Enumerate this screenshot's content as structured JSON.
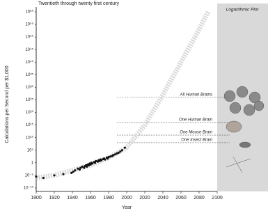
{
  "chart_data": {
    "type": "scatter",
    "subtitle": "Twentieth through twenty first century",
    "panel_label": "Logarithmic Plot",
    "x_label": "Year",
    "y_label": "Calculations per Second per $1,000",
    "log_y": true,
    "xlim": [
      1900,
      2100
    ],
    "xticks": [
      1900,
      1920,
      1940,
      1960,
      1980,
      2000,
      2020,
      2040,
      2060,
      2080,
      2100
    ],
    "ylim": [
      1e-10,
      1e+60
    ],
    "yticks": [
      {
        "value": 1e-10,
        "label": "10⁻¹⁰"
      },
      {
        "value": 1e-05,
        "label": "10⁻⁵"
      },
      1,
      {
        "value": 100000.0,
        "label": "10⁵"
      },
      {
        "value": 10000000000.0,
        "label": "10¹⁰"
      },
      {
        "value": 1000000000000000.0,
        "label": "10¹⁵"
      },
      {
        "value": 1e+20,
        "label": "10²⁰"
      },
      {
        "value": 1e+25,
        "label": "10²⁵"
      },
      {
        "value": 1e+30,
        "label": "10³⁰"
      },
      {
        "value": 1e+35,
        "label": "10³⁵"
      },
      {
        "value": 1e+40,
        "label": "10⁴⁰"
      },
      {
        "value": 1e+45,
        "label": "10⁴⁵"
      },
      {
        "value": 1e+50,
        "label": "10⁵⁰"
      },
      {
        "value": 1e+55,
        "label": "10⁵⁵"
      },
      {
        "value": 1e+60,
        "label": "10⁶⁰"
      }
    ],
    "reference_lines": [
      {
        "label": "All Human Brains",
        "value": 1e+26
      },
      {
        "label": "One Human Brain",
        "value": 1e+16
      },
      {
        "label": "One Mouse Brain",
        "value": 100000000000.0
      },
      {
        "label": "One Insect Brain",
        "value": 100000000.0
      }
    ],
    "trend": {
      "color": "#d8d8d8",
      "x": [
        1900,
        1920,
        1940,
        1960,
        1980,
        2000,
        2020,
        2040,
        2060,
        2080,
        2090
      ],
      "values": [
        1e-06,
        1e-05,
        0.001,
        0.1,
        100,
        1000000.0,
        1000000000000000.0,
        1e+27,
        1e+40,
        1e+53,
        1e+60
      ]
    },
    "series": [
      {
        "color": "#111",
        "x": [
          1900,
          1908,
          1920,
          1930,
          1939,
          1941,
          1943,
          1946,
          1948,
          1949,
          1951,
          1953,
          1954,
          1955,
          1956,
          1957,
          1958,
          1959,
          1960,
          1961,
          1962,
          1964,
          1965,
          1966,
          1968,
          1969,
          1970,
          1971,
          1972,
          1974,
          1975,
          1976,
          1978,
          1979,
          1980,
          1982,
          1984,
          1985,
          1987,
          1989,
          1991,
          1993,
          1995,
          1998
        ],
        "values": [
          3e-06,
          1e-06,
          1e-05,
          3e-05,
          0.0001,
          0.0003,
          0.001,
          0.005,
          0.002,
          0.01,
          0.03,
          0.01,
          0.05,
          0.1,
          0.03,
          0.2,
          0.1,
          0.5,
          0.2,
          1,
          0.5,
          2,
          1,
          5,
          3,
          10,
          5,
          20,
          10,
          30,
          50,
          20,
          100,
          50,
          200,
          300,
          500,
          1000,
          2000,
          5000,
          10000,
          30000,
          100000,
          1000000
        ]
      }
    ]
  }
}
